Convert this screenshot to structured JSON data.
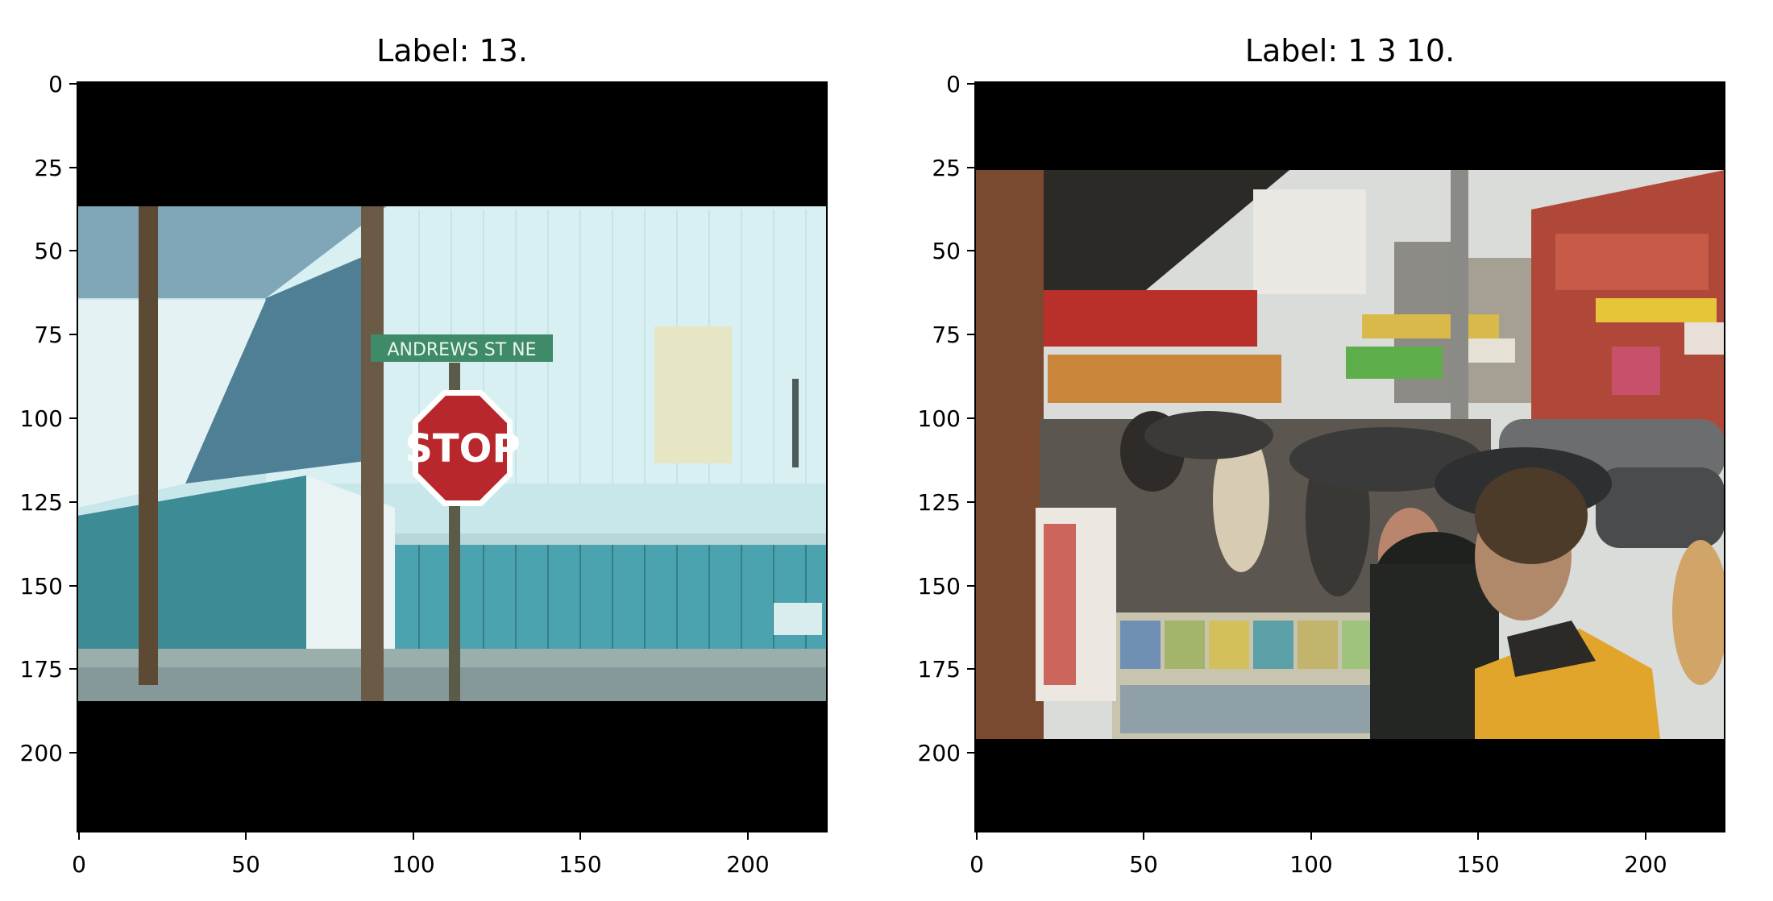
{
  "figure": {
    "panels": [
      {
        "title": "Label: 13.",
        "image_description": "Street corner with a red STOP sign on a wooden utility pole, a green street-name sign above it, and a pale blue-white industrial building with teal corrugated walls behind",
        "street_sign_text": "ANDREWS ST NE",
        "stop_sign_text": "STOP",
        "x_ticks": [
          "0",
          "50",
          "100",
          "150",
          "200"
        ],
        "y_ticks": [
          "0",
          "25",
          "50",
          "75",
          "100",
          "125",
          "150",
          "175",
          "200"
        ],
        "x_range": [
          0,
          224
        ],
        "y_range": [
          0,
          224
        ],
        "image_content_rows": [
          37,
          185
        ]
      },
      {
        "title": "Label: 1 3 10.",
        "image_description": "Busy Chinatown street scene on a rainy day with people holding umbrellas, a man in a yellow jacket in the foreground, shop signs with Chinese characters, a newspaper/magazine stand, and parked cars",
        "x_ticks": [
          "0",
          "50",
          "100",
          "150",
          "200"
        ],
        "y_ticks": [
          "0",
          "25",
          "50",
          "75",
          "100",
          "125",
          "150",
          "175",
          "200"
        ],
        "x_range": [
          0,
          224
        ],
        "y_range": [
          0,
          224
        ],
        "image_content_rows": [
          26,
          196
        ]
      }
    ]
  }
}
